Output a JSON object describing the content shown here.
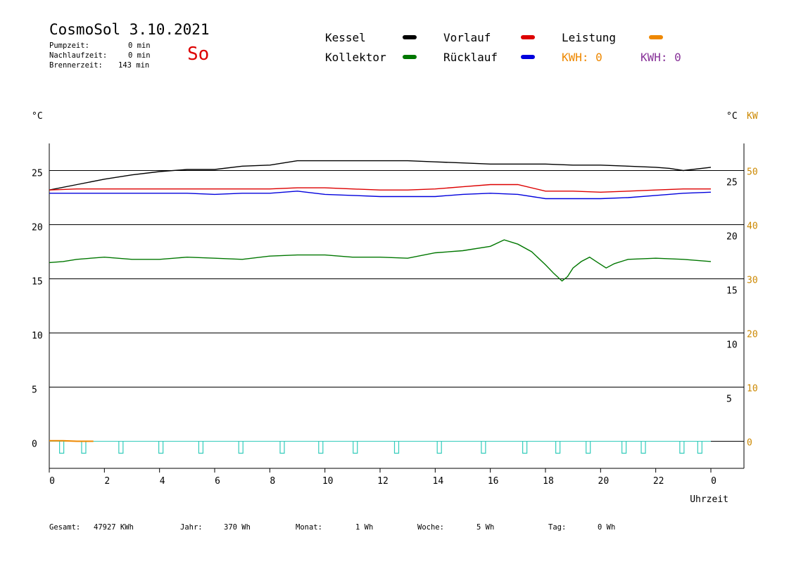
{
  "header": {
    "title": "CosmoSol 3.10.2021",
    "day": "So",
    "stats": [
      {
        "label": "Pumpzeit:",
        "value": "0 min"
      },
      {
        "label": "Nachlaufzeit:",
        "value": "0 min"
      },
      {
        "label": "Brennerzeit:",
        "value": "143 min"
      }
    ]
  },
  "legend": {
    "kessel": {
      "label": "Kessel",
      "color": "#000000"
    },
    "kollektor": {
      "label": "Kollektor",
      "color": "#007700"
    },
    "vorlauf": {
      "label": "Vorlauf",
      "color": "#dd0000"
    },
    "ruecklauf": {
      "label": "Rücklauf",
      "color": "#0000dd"
    },
    "leistung": {
      "label": "Leistung",
      "color": "#ee8800"
    },
    "kwh_orange": {
      "label": "KWH: 0",
      "color": "#ee8800"
    },
    "kwh_purple": {
      "label": "KWH: 0",
      "color": "#883399"
    }
  },
  "footer": [
    {
      "label": "Gesamt:",
      "value": "47927 KWh"
    },
    {
      "label": "Jahr:",
      "value": "370 Wh"
    },
    {
      "label": "Monat:",
      "value": "1 Wh"
    },
    {
      "label": "Woche:",
      "value": "5 Wh"
    },
    {
      "label": "Tag:",
      "value": "0 Wh"
    }
  ],
  "chart_data": {
    "type": "line",
    "title": "",
    "xlabel": "Uhrzeit",
    "ylabel_left": "°C",
    "ylabel_right": "°C",
    "ylabel_right2": "KW",
    "xlim": [
      0,
      24
    ],
    "ylim": [
      -2.5,
      27.5
    ],
    "x_ticks": [
      "0",
      "2",
      "4",
      "6",
      "8",
      "10",
      "12",
      "14",
      "16",
      "18",
      "20",
      "22",
      "0"
    ],
    "y_ticks_left": [
      0,
      5,
      10,
      15,
      20,
      25
    ],
    "y_ticks_right_c": [
      5,
      10,
      15,
      20,
      25
    ],
    "y_ticks_right_kw": [
      0,
      10,
      20,
      30,
      40,
      50
    ],
    "grid": true,
    "series": [
      {
        "name": "Kessel",
        "color": "#000000",
        "x": [
          0,
          1,
          2,
          3,
          4,
          5,
          6,
          7,
          8,
          8.5,
          9,
          10,
          11,
          12,
          13,
          14,
          15,
          16,
          17,
          18,
          19,
          20,
          21,
          22,
          22.5,
          23,
          24
        ],
        "y": [
          23.2,
          23.7,
          24.2,
          24.6,
          24.9,
          25.1,
          25.1,
          25.4,
          25.5,
          25.7,
          25.9,
          25.9,
          25.9,
          25.9,
          25.9,
          25.8,
          25.7,
          25.6,
          25.6,
          25.6,
          25.5,
          25.5,
          25.4,
          25.3,
          25.2,
          25.0,
          25.3
        ]
      },
      {
        "name": "Vorlauf",
        "color": "#dd0000",
        "x": [
          0,
          1,
          2,
          3,
          4,
          5,
          6,
          7,
          8,
          9,
          10,
          11,
          12,
          13,
          14,
          15,
          16,
          17,
          18,
          19,
          20,
          21,
          22,
          23,
          24
        ],
        "y": [
          23.2,
          23.3,
          23.3,
          23.3,
          23.3,
          23.3,
          23.3,
          23.3,
          23.3,
          23.4,
          23.4,
          23.3,
          23.2,
          23.2,
          23.3,
          23.5,
          23.7,
          23.7,
          23.1,
          23.1,
          23.0,
          23.1,
          23.2,
          23.3,
          23.3
        ]
      },
      {
        "name": "Rücklauf",
        "color": "#0000dd",
        "x": [
          0,
          1,
          2,
          3,
          4,
          5,
          6,
          7,
          8,
          9,
          10,
          11,
          12,
          13,
          14,
          15,
          16,
          17,
          18,
          19,
          20,
          21,
          22,
          23,
          24
        ],
        "y": [
          22.9,
          22.9,
          22.9,
          22.9,
          22.9,
          22.9,
          22.8,
          22.9,
          22.9,
          23.1,
          22.8,
          22.7,
          22.6,
          22.6,
          22.6,
          22.8,
          22.9,
          22.8,
          22.4,
          22.4,
          22.4,
          22.5,
          22.7,
          22.9,
          23.0
        ]
      },
      {
        "name": "Kollektor",
        "color": "#007700",
        "x": [
          0,
          0.5,
          1,
          1.5,
          2,
          3,
          4,
          5,
          6,
          7,
          8,
          9,
          10,
          11,
          12,
          13,
          14,
          15,
          16,
          16.5,
          17,
          17.5,
          18,
          18.3,
          18.6,
          18.8,
          19,
          19.3,
          19.6,
          19.9,
          20.2,
          20.5,
          21,
          22,
          23,
          24
        ],
        "y": [
          16.5,
          16.6,
          16.8,
          16.9,
          17.0,
          16.8,
          16.8,
          17.0,
          16.9,
          16.8,
          17.1,
          17.2,
          17.2,
          17.0,
          17.0,
          16.9,
          17.4,
          17.6,
          18.0,
          18.6,
          18.2,
          17.5,
          16.3,
          15.5,
          14.8,
          15.2,
          16.0,
          16.6,
          17.0,
          16.5,
          16.0,
          16.4,
          16.8,
          16.9,
          16.8,
          16.6
        ]
      },
      {
        "name": "Leistung",
        "color": "#ee8800",
        "x": [
          0,
          0.5,
          1,
          1.6
        ],
        "y": [
          0.05,
          0.05,
          0.0,
          0.0
        ]
      }
    ],
    "pulses": {
      "color": "#33ccbb",
      "x": [
        0.45,
        1.25,
        2.6,
        4.05,
        5.5,
        6.95,
        8.45,
        9.85,
        11.1,
        12.6,
        14.15,
        15.75,
        17.25,
        18.45,
        19.55,
        20.85,
        21.55,
        22.95,
        23.6
      ]
    }
  }
}
